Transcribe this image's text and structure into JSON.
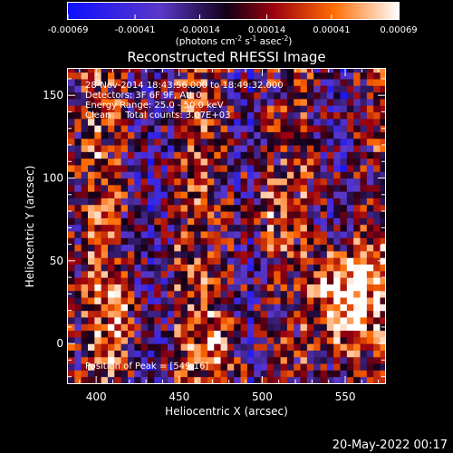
{
  "colorbar": {
    "tick_labels": [
      "-0.00069",
      "-0.00041",
      "-0.00014",
      "0.00014",
      "0.00041",
      "0.00069"
    ],
    "range": [
      -0.00069,
      0.00069
    ],
    "units_prefix": "(photons cm",
    "units_exp1": "-2",
    "units_mid": " s",
    "units_exp2": "-1",
    "units_suffix": " asec",
    "units_exp3": "-2",
    "units_close": ")"
  },
  "annotations": {
    "time": "28-Nov-2014 18:43:56.000 to 18:49:32.000",
    "detectors": "Detectors: 3F 6F 9F, Att 0",
    "energy": "Energy Range: 25.0 - 50.0 keV",
    "clean": "Clean     Total counts: 3.07E+03",
    "peak": "Position of Peak = [549,16]"
  },
  "timestamp": "20-May-2022 00:17",
  "colors": {
    "background": "#000000",
    "foreground": "#ffffff"
  },
  "chart_data": {
    "type": "heatmap",
    "title": "Reconstructed RHESSI Image",
    "xlabel": "Heliocentric X (arcsec)",
    "ylabel": "Heliocentric Y (arcsec)",
    "xlim": [
      383,
      574
    ],
    "ylim": [
      -24,
      166
    ],
    "xticks": [
      400,
      450,
      500,
      550
    ],
    "yticks": [
      0,
      50,
      100,
      150
    ],
    "grid": false,
    "peak": [
      549,
      16
    ],
    "colormap": "blue-black-red-yellow-white",
    "pixel_size_arcsec": 4,
    "bright_regions": [
      {
        "x": 549,
        "y": 16,
        "value": 0.00069
      },
      {
        "x": 540,
        "y": 30,
        "value": 0.00055
      },
      {
        "x": 560,
        "y": 40,
        "value": 0.0005
      },
      {
        "x": 475,
        "y": 0,
        "value": 0.0004
      },
      {
        "x": 505,
        "y": 80,
        "value": 0.00035
      },
      {
        "x": 410,
        "y": 10,
        "value": 0.0003
      }
    ]
  }
}
